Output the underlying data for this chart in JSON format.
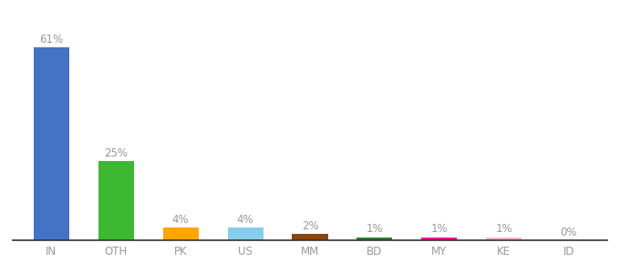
{
  "categories": [
    "IN",
    "OTH",
    "PK",
    "US",
    "MM",
    "BD",
    "MY",
    "KE",
    "ID"
  ],
  "values": [
    61,
    25,
    4,
    4,
    2,
    1,
    1,
    1,
    0
  ],
  "labels": [
    "61%",
    "25%",
    "4%",
    "4%",
    "2%",
    "1%",
    "1%",
    "1%",
    "0%"
  ],
  "colors": [
    "#4472C4",
    "#3CB832",
    "#FFA500",
    "#87CEEB",
    "#8B4513",
    "#2E7D32",
    "#FF1493",
    "#FFB6C1",
    "#D3D3D3"
  ],
  "background_color": "#ffffff",
  "ylim": [
    0,
    70
  ],
  "label_fontsize": 8.5,
  "tick_fontsize": 8.5,
  "bar_width": 0.55,
  "label_color": "#999999",
  "tick_color": "#999999"
}
